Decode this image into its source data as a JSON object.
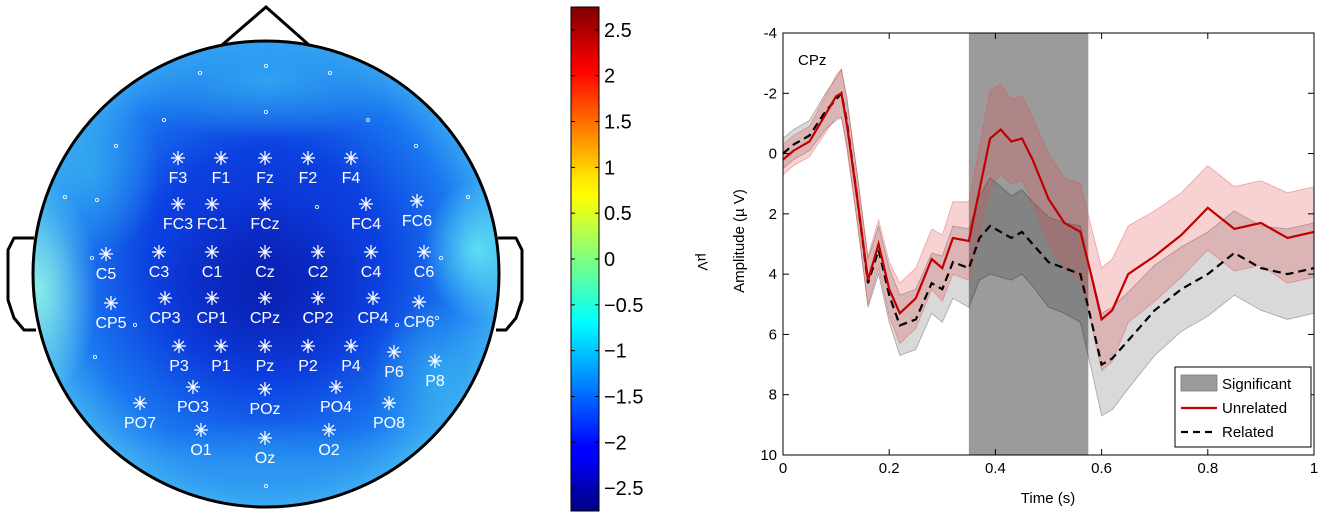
{
  "topomap": {
    "electrodes": [
      "F3",
      "F1",
      "Fz",
      "F2",
      "F4",
      "FC3",
      "FC1",
      "FCz",
      "FC4",
      "FC6",
      "C5",
      "C3",
      "C1",
      "Cz",
      "C2",
      "C4",
      "C6",
      "CP5",
      "CP3",
      "CP1",
      "CPz",
      "CP2",
      "CP4",
      "CP6",
      "P3",
      "P1",
      "Pz",
      "P2",
      "P4",
      "P6",
      "P8",
      "PO7",
      "PO3",
      "POz",
      "PO4",
      "PO8",
      "O1",
      "Oz",
      "O2"
    ]
  },
  "colorbar": {
    "unit": "µV",
    "ticks": [
      "2.5",
      "2",
      "1.5",
      "1",
      "0.5",
      "0",
      "−0.5",
      "−1",
      "−1.5",
      "−2",
      "−2.5"
    ],
    "range": [
      -2.75,
      2.75
    ]
  },
  "chart_data": {
    "type": "line",
    "annotation": "CPz",
    "xlabel": "Time (s)",
    "ylabel": "Amplitude (µ V)",
    "xlim": [
      0,
      1
    ],
    "ylim": [
      -4,
      10
    ],
    "y_inverted": true,
    "xticks": [
      "0",
      "0.2",
      "0.4",
      "0.6",
      "0.8",
      "1"
    ],
    "yticks": [
      "-4",
      "-2",
      "0",
      "2",
      "4",
      "6",
      "8",
      "10"
    ],
    "legend_position": "bottom-right",
    "significant_interval": [
      0.35,
      0.575
    ],
    "legend": [
      "Significant",
      "Unrelated",
      "Related"
    ],
    "series": [
      {
        "name": "Unrelated",
        "color": "#c00000",
        "x": [
          0,
          0.02,
          0.05,
          0.08,
          0.1,
          0.11,
          0.12,
          0.14,
          0.16,
          0.18,
          0.2,
          0.22,
          0.25,
          0.28,
          0.3,
          0.32,
          0.35,
          0.37,
          0.39,
          0.41,
          0.43,
          0.45,
          0.47,
          0.5,
          0.53,
          0.56,
          0.58,
          0.6,
          0.62,
          0.65,
          0.7,
          0.75,
          0.8,
          0.85,
          0.9,
          0.95,
          1.0
        ],
        "y": [
          0.2,
          -0.1,
          -0.4,
          -1.3,
          -1.9,
          -2.0,
          -1.0,
          1.5,
          4.2,
          3.0,
          4.5,
          5.3,
          4.8,
          3.5,
          3.8,
          2.8,
          2.9,
          1.2,
          -0.5,
          -0.8,
          -0.4,
          -0.5,
          0.2,
          1.5,
          2.3,
          2.6,
          4.0,
          5.5,
          5.2,
          4.0,
          3.4,
          2.7,
          1.8,
          2.5,
          2.3,
          2.8,
          2.6
        ],
        "band_halfwidth": [
          0.5,
          0.5,
          0.5,
          0.6,
          0.7,
          0.8,
          0.8,
          0.8,
          0.8,
          0.8,
          0.9,
          1.0,
          1.0,
          1.0,
          1.1,
          1.2,
          1.3,
          1.4,
          1.6,
          1.5,
          1.4,
          1.4,
          1.4,
          1.5,
          1.5,
          1.6,
          1.6,
          1.7,
          1.7,
          1.6,
          1.5,
          1.4,
          1.4,
          1.4,
          1.4,
          1.5,
          1.5
        ]
      },
      {
        "name": "Related",
        "color": "#000000",
        "x": [
          0,
          0.02,
          0.05,
          0.08,
          0.1,
          0.11,
          0.12,
          0.14,
          0.16,
          0.18,
          0.2,
          0.22,
          0.25,
          0.28,
          0.3,
          0.32,
          0.35,
          0.37,
          0.39,
          0.41,
          0.43,
          0.45,
          0.47,
          0.5,
          0.53,
          0.56,
          0.58,
          0.6,
          0.62,
          0.65,
          0.7,
          0.75,
          0.8,
          0.85,
          0.9,
          0.95,
          1.0
        ],
        "y": [
          0.0,
          -0.3,
          -0.6,
          -1.4,
          -1.8,
          -2.0,
          -1.1,
          1.5,
          4.3,
          3.2,
          4.7,
          5.7,
          5.5,
          4.3,
          4.5,
          3.6,
          3.8,
          2.8,
          2.4,
          2.6,
          2.8,
          2.6,
          3.0,
          3.6,
          3.8,
          4.0,
          5.5,
          7.0,
          6.8,
          6.2,
          5.2,
          4.5,
          4.0,
          3.3,
          3.8,
          4.0,
          3.8
        ],
        "band_halfwidth": [
          0.5,
          0.5,
          0.5,
          0.6,
          0.7,
          0.8,
          0.8,
          0.8,
          0.8,
          0.8,
          0.9,
          1.0,
          1.0,
          1.0,
          1.1,
          1.2,
          1.3,
          1.4,
          1.6,
          1.5,
          1.4,
          1.4,
          1.4,
          1.5,
          1.5,
          1.6,
          1.6,
          1.7,
          1.7,
          1.6,
          1.5,
          1.4,
          1.4,
          1.4,
          1.4,
          1.5,
          1.5
        ]
      }
    ]
  }
}
